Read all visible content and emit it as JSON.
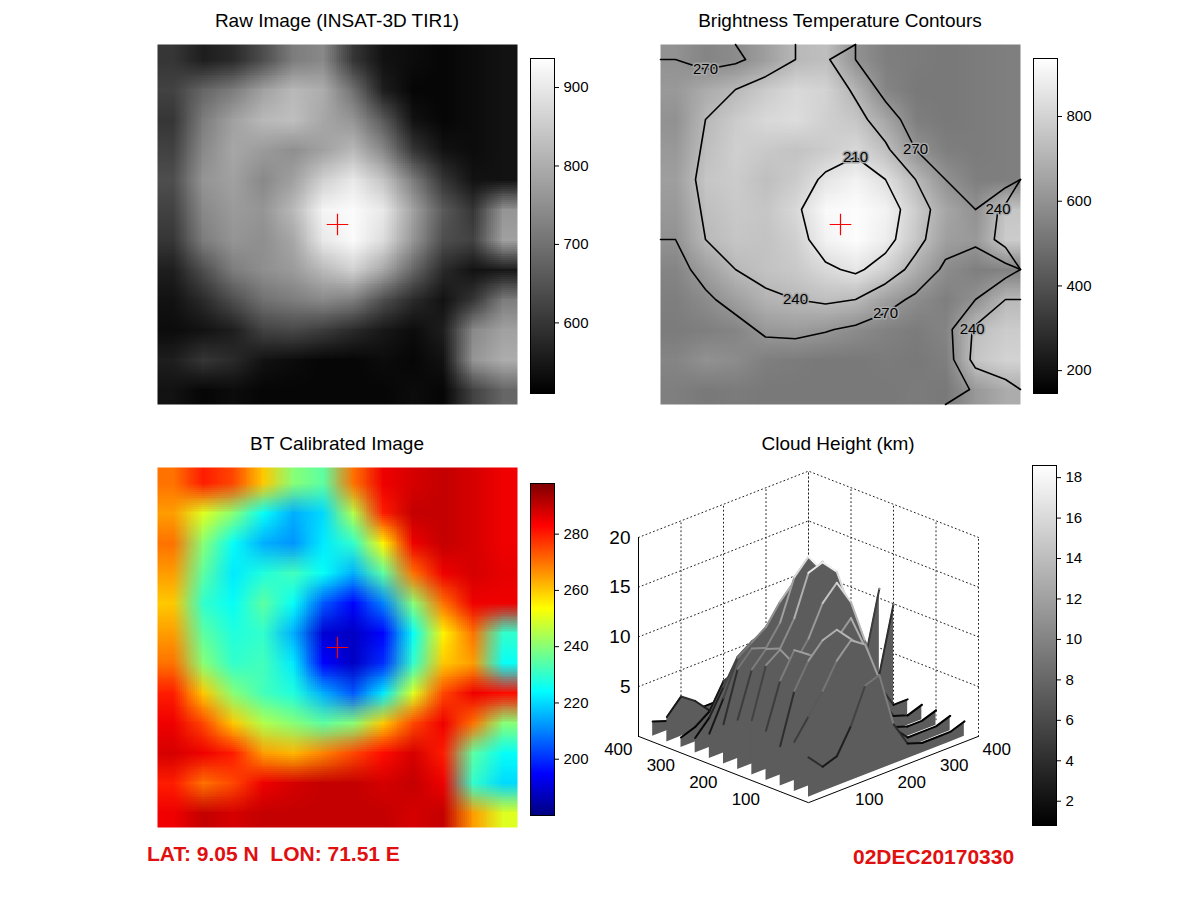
{
  "chart_data": [
    {
      "type": "heatmap",
      "title": "Raw Image (INSAT-3D TIR1)",
      "color": "gray",
      "marker": "plus",
      "tick_labels": false,
      "cells": [
        [
          600,
          560,
          580,
          640,
          720,
          740,
          600,
          540,
          530,
          520,
          530,
          540
        ],
        [
          620,
          680,
          720,
          780,
          820,
          800,
          700,
          560,
          520,
          520,
          530,
          540
        ],
        [
          600,
          720,
          780,
          820,
          830,
          790,
          760,
          660,
          540,
          520,
          530,
          540
        ],
        [
          620,
          740,
          790,
          770,
          750,
          780,
          820,
          740,
          600,
          540,
          530,
          540
        ],
        [
          640,
          760,
          780,
          740,
          780,
          860,
          900,
          840,
          720,
          600,
          540,
          540
        ],
        [
          620,
          740,
          770,
          760,
          820,
          920,
          930,
          900,
          780,
          660,
          600,
          760
        ],
        [
          600,
          720,
          760,
          750,
          790,
          900,
          930,
          880,
          760,
          640,
          620,
          780
        ],
        [
          560,
          640,
          720,
          750,
          770,
          820,
          860,
          790,
          680,
          580,
          540,
          550
        ],
        [
          540,
          580,
          640,
          700,
          720,
          740,
          720,
          640,
          580,
          540,
          600,
          720
        ],
        [
          530,
          540,
          560,
          620,
          630,
          610,
          580,
          550,
          530,
          560,
          740,
          780
        ],
        [
          560,
          600,
          580,
          540,
          530,
          520,
          520,
          530,
          520,
          540,
          760,
          800
        ],
        [
          540,
          520,
          530,
          520,
          520,
          520,
          520,
          520,
          530,
          520,
          620,
          680
        ]
      ],
      "colorbar_range": [
        510,
        937
      ],
      "colorbar_ticks": [
        600,
        700,
        800,
        900
      ]
    },
    {
      "type": "contour",
      "title": "Brightness Temperature Contours",
      "color": "gray",
      "marker": "plus",
      "tick_labels": false,
      "data_labels": true,
      "cells": [
        [
          600,
          560,
          580,
          640,
          720,
          740,
          600,
          540,
          530,
          520,
          530,
          540
        ],
        [
          620,
          680,
          720,
          780,
          820,
          800,
          700,
          560,
          520,
          520,
          530,
          540
        ],
        [
          600,
          720,
          780,
          820,
          830,
          790,
          760,
          660,
          540,
          520,
          530,
          540
        ],
        [
          620,
          740,
          790,
          770,
          750,
          780,
          820,
          740,
          600,
          540,
          530,
          540
        ],
        [
          640,
          760,
          780,
          740,
          780,
          860,
          900,
          840,
          720,
          600,
          540,
          540
        ],
        [
          620,
          740,
          770,
          760,
          820,
          920,
          930,
          900,
          780,
          660,
          600,
          760
        ],
        [
          600,
          720,
          760,
          750,
          790,
          900,
          930,
          880,
          760,
          640,
          620,
          780
        ],
        [
          560,
          640,
          720,
          750,
          770,
          820,
          860,
          790,
          680,
          580,
          540,
          550
        ],
        [
          540,
          580,
          640,
          700,
          720,
          740,
          720,
          640,
          580,
          540,
          600,
          720
        ],
        [
          530,
          540,
          560,
          620,
          630,
          610,
          580,
          550,
          530,
          560,
          740,
          780
        ],
        [
          560,
          600,
          580,
          540,
          530,
          520,
          520,
          530,
          520,
          540,
          760,
          800
        ],
        [
          540,
          520,
          530,
          520,
          520,
          520,
          520,
          520,
          530,
          520,
          620,
          680
        ]
      ],
      "colorbar_range": [
        146,
        937
      ],
      "colorbar_ticks": [
        200,
        400,
        600,
        800
      ],
      "contour_levels": [
        210,
        240,
        270
      ],
      "contour_cells": [
        [
          270,
          280,
          275,
          260,
          240,
          235,
          270,
          285,
          288,
          290,
          288,
          285
        ],
        [
          265,
          250,
          240,
          225,
          215,
          220,
          245,
          280,
          290,
          290,
          288,
          285
        ],
        [
          270,
          240,
          225,
          215,
          212,
          222,
          230,
          255,
          285,
          290,
          288,
          285
        ],
        [
          265,
          235,
          222,
          228,
          232,
          225,
          215,
          235,
          270,
          285,
          288,
          286
        ],
        [
          260,
          230,
          225,
          235,
          225,
          205,
          195,
          210,
          240,
          270,
          285,
          285
        ],
        [
          265,
          235,
          228,
          230,
          215,
          190,
          188,
          195,
          225,
          255,
          270,
          230
        ],
        [
          270,
          240,
          230,
          232,
          222,
          195,
          188,
          200,
          230,
          260,
          265,
          225
        ],
        [
          280,
          260,
          240,
          232,
          228,
          215,
          205,
          222,
          250,
          275,
          285,
          282
        ],
        [
          285,
          275,
          260,
          245,
          240,
          235,
          240,
          260,
          275,
          285,
          270,
          240
        ],
        [
          288,
          285,
          280,
          265,
          262,
          268,
          275,
          282,
          288,
          280,
          235,
          225
        ],
        [
          280,
          270,
          275,
          285,
          288,
          290,
          290,
          288,
          290,
          285,
          230,
          220
        ],
        [
          285,
          290,
          288,
          290,
          290,
          290,
          290,
          290,
          288,
          290,
          265,
          250
        ]
      ]
    },
    {
      "type": "heatmap",
      "title": "BT Calibrated Image",
      "color": "jet",
      "marker": "plus",
      "tick_labels": false,
      "cells": [
        [
          270,
          280,
          275,
          260,
          240,
          235,
          270,
          285,
          288,
          290,
          288,
          285
        ],
        [
          265,
          250,
          240,
          225,
          215,
          220,
          245,
          280,
          290,
          290,
          288,
          285
        ],
        [
          270,
          240,
          225,
          215,
          212,
          222,
          230,
          255,
          285,
          290,
          288,
          285
        ],
        [
          265,
          235,
          222,
          228,
          232,
          225,
          215,
          235,
          270,
          285,
          288,
          286
        ],
        [
          260,
          230,
          225,
          235,
          225,
          205,
          195,
          210,
          240,
          270,
          285,
          285
        ],
        [
          265,
          235,
          228,
          230,
          215,
          190,
          188,
          195,
          225,
          255,
          270,
          230
        ],
        [
          270,
          240,
          230,
          232,
          222,
          195,
          188,
          200,
          230,
          260,
          265,
          225
        ],
        [
          280,
          260,
          240,
          232,
          228,
          215,
          205,
          222,
          250,
          275,
          285,
          282
        ],
        [
          285,
          275,
          260,
          245,
          240,
          235,
          240,
          260,
          275,
          285,
          270,
          240
        ],
        [
          288,
          285,
          280,
          265,
          262,
          268,
          275,
          282,
          288,
          280,
          235,
          225
        ],
        [
          280,
          270,
          275,
          285,
          288,
          290,
          290,
          288,
          290,
          285,
          230,
          220
        ],
        [
          285,
          290,
          288,
          290,
          290,
          290,
          290,
          290,
          288,
          290,
          265,
          250
        ]
      ],
      "colorbar_range": [
        180,
        298
      ],
      "colorbar_ticks": [
        200,
        220,
        240,
        260,
        280
      ],
      "annotation": "LAT: 9.05 N  LON: 71.51 E"
    },
    {
      "type": "surface",
      "title": "Cloud Height (km)",
      "color": "gray",
      "grid": true,
      "cells": [
        [
          4,
          2.5,
          3,
          5.5,
          9,
          9.5,
          4,
          1.5,
          1,
          1,
          1,
          1.5
        ],
        [
          5,
          7,
          9,
          11.5,
          13,
          12,
          8,
          2.5,
          1,
          1,
          1,
          1.5
        ],
        [
          4,
          9,
          11.5,
          13,
          13.5,
          12,
          10.5,
          6.5,
          1.5,
          1,
          1,
          1.5
        ],
        [
          5,
          9.5,
          12,
          11,
          10,
          11.5,
          13,
          9.5,
          4,
          1.5,
          1,
          1.5
        ],
        [
          5.5,
          10.5,
          11.5,
          9.5,
          11.5,
          14.5,
          16,
          13.5,
          9,
          4,
          1.5,
          1.5
        ],
        [
          5,
          9.5,
          11,
          10.5,
          13,
          17,
          17.5,
          16,
          11.5,
          6.5,
          4,
          10.5
        ],
        [
          4,
          9,
          10.5,
          10,
          12,
          16,
          17.5,
          15.5,
          10.5,
          5.5,
          5,
          11.5
        ],
        [
          2.5,
          5.5,
          9,
          10,
          11,
          13,
          14.5,
          12,
          7,
          3,
          1.5,
          2
        ],
        [
          1.5,
          3,
          5.5,
          8,
          9,
          9.5,
          9,
          5.5,
          3,
          1.5,
          4,
          9
        ],
        [
          1,
          1.5,
          2.5,
          5,
          5.5,
          4.5,
          3,
          2,
          1,
          2.5,
          9.5,
          11.5
        ],
        [
          2.5,
          4,
          3,
          1.5,
          1,
          1,
          1,
          1,
          1,
          1.5,
          10.5,
          12
        ],
        [
          1.5,
          1,
          1,
          1,
          1,
          1,
          1,
          1,
          1,
          1,
          5,
          7
        ]
      ],
      "xlim": [
        0,
        400
      ],
      "ylim": [
        0,
        400
      ],
      "zlim": [
        0,
        20
      ],
      "xticks": [
        100,
        200,
        300,
        400
      ],
      "yticks": [
        100,
        200,
        300,
        400
      ],
      "zticks": [
        5,
        10,
        15,
        20
      ],
      "colorbar_range": [
        0.8,
        18.6
      ],
      "colorbar_ticks": [
        2,
        4,
        6,
        8,
        10,
        12,
        14,
        16,
        18
      ],
      "annotation": "02DEC20170330"
    }
  ]
}
